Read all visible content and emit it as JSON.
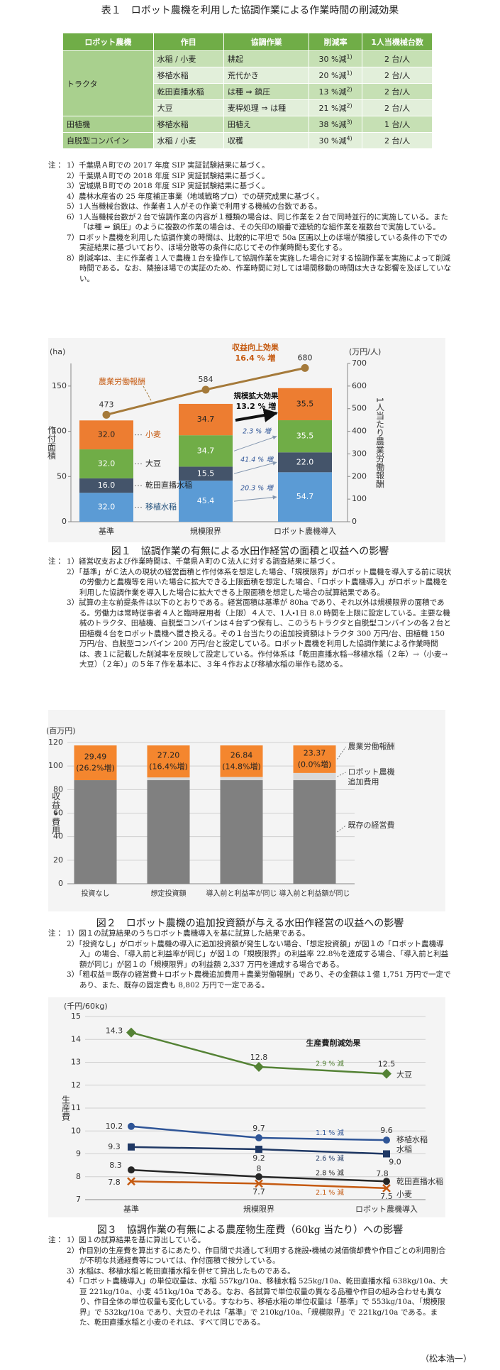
{
  "table": {
    "title": "表１　ロボット農機を利用した協調作業による作業時間の削減効果",
    "header": [
      "ロボット農機",
      "作目",
      "協調作業",
      "削減率",
      "1人当機械台数"
    ],
    "groups": [
      {
        "machine": "トラクタ",
        "rows": [
          [
            "水稲 / 小麦",
            "耕起",
            "30 %減",
            "1)",
            "2 台/人"
          ],
          [
            "移植水稲",
            "荒代かき",
            "20 %減",
            "1)",
            "2 台/人"
          ],
          [
            "乾田直播水稲",
            "は種 ⇒ 鎮圧",
            "13 %減",
            "2)",
            "2 台/人"
          ],
          [
            "大豆",
            "麦稈処理 ⇒ は種",
            "21 %減",
            "2)",
            "2 台/人"
          ]
        ]
      },
      {
        "machine": "田植機",
        "rows": [
          [
            "移植水稲",
            "田植え",
            "38 %減",
            "3)",
            "1 台/人"
          ]
        ]
      },
      {
        "machine": "自脱型コンバイン",
        "rows": [
          [
            "水稲 / 小麦",
            "収穫",
            "30 %減",
            "4)",
            "2 台/人"
          ]
        ]
      }
    ],
    "notes": {
      "label": "注：",
      "items": [
        "1）千葉県Ａ町での 2017 年度 SIP 実証試験結果に基づく。",
        "2）千葉県Ａ町での 2018 年度 SIP 実証試験結果に基づく。",
        "3）宮城県Ｂ町での 2018 年度 SIP 実証試験結果に基づく。",
        "4）農林水産省の 25 年度補正事業（地域戦略プロ）での研究成果に基づく。",
        "5）1人当機械台数は、作業者１人がその作業で利用する機械の台数である。",
        "6）1人当機械台数が２台で協調作業の内容が１種類の場合は、同じ作業を２台で同時並行的に実施している。また「は種 ⇒ 鎮圧」のように複数の作業の場合は、その矢印の順番で連続的な組作業を複数台で実施している。",
        "7）ロボット農機を利用した協調作業の時間は、比較的に平坦で 50a 区画以上のほ場が隣接している条件の下での実証結果に基づいており、ほ場分散等の条件に応じてその作業時間も変化する。",
        "8）削減率は、主に作業者１人で農機１台を操作して協調作業を実施した場合に対する協調作業を実施によって削減時間である。なお、隣接ほ場での実証のため、作業時間に対しては場間移動の時間は大きな影響を及ぼしていない。"
      ]
    }
  },
  "chart_data": [
    {
      "type": "stacked_bar",
      "categories": [
        "基準",
        "規模限界",
        "ロボット農機導入"
      ],
      "series": [
        {
          "name": "移植水稲",
          "color": "#5b9bd5",
          "values": [
            32.0,
            45.4,
            54.7
          ],
          "value_labels": [
            "32.0",
            "45.4",
            "54.7"
          ],
          "data_labels": true
        },
        {
          "name": "乾田直播水稲",
          "color": "#44546a",
          "values": [
            16.0,
            15.5,
            22.0
          ],
          "value_labels": [
            "16.0",
            "15.5",
            "22.0"
          ],
          "data_labels": true
        },
        {
          "name": "大豆",
          "color": "#70ad47",
          "values": [
            32.0,
            34.7,
            35.5
          ],
          "value_labels": [
            "32.0",
            "34.7",
            "35.5"
          ],
          "data_labels": true
        },
        {
          "name": "小麦",
          "color": "#ed7d31",
          "values": [
            32.0,
            34.7,
            35.5
          ],
          "value_labels": [
            "32.0",
            "34.7",
            "35.5"
          ],
          "data_labels": true
        },
        {
          "name": "農業労働報酬",
          "type": "line",
          "axis": "y2",
          "color": "#a57a3a",
          "values": [
            473,
            584,
            680
          ],
          "data_labels": true
        }
      ],
      "ylim": [
        0,
        175
      ],
      "yticks": [
        0,
        50,
        100,
        150
      ],
      "y2lim": [
        0,
        700
      ],
      "y2ticks": [
        0,
        100,
        200,
        300,
        400,
        500,
        600,
        700
      ],
      "grid": false,
      "yunit": "(ha)",
      "ylabel": "作付面積",
      "y2unit": "(万円/人)",
      "y2label": "1人当たり農業労働報酬",
      "annotations": [
        "収益向上効果",
        "16.4 % 増",
        "規模拡大効果",
        "13.2 % 増",
        "2.3 % 増",
        "41.4 % 増",
        "20.3 % 増"
      ]
    },
    {
      "type": "stacked_bar",
      "categories": [
        "投資なし",
        "想定投資額",
        "導入前と利益率が同じ",
        "導入前と利益額が同じ"
      ],
      "series": [
        {
          "name": "既存の経営費",
          "color": "#808080",
          "values": [
            88.02,
            88.02,
            88.02,
            88.02
          ]
        },
        {
          "name": "ロボット農機追加費用",
          "color": "#d9d9d9",
          "values": [
            null,
            2.29,
            2.65,
            6.12
          ],
          "data_labels": true
        },
        {
          "name": "農業労働報酬",
          "color": "#f4862e",
          "values": [
            29.49,
            27.2,
            26.84,
            23.37
          ],
          "value_labels": [
            "29.49",
            "27.20",
            "26.84",
            "23.37"
          ],
          "data_labels": true,
          "change_labels": [
            "(26.2%増)",
            "(16.4%増)",
            "(14.8%増)",
            "(0.0%増)"
          ]
        }
      ],
      "ylim": [
        0,
        120
      ],
      "yticks": [
        0,
        20,
        40,
        60,
        80,
        100,
        120
      ],
      "grid": true,
      "yunit": "(百万円)",
      "ylabel": "収益・費用"
    },
    {
      "type": "line",
      "categories": [
        "基準",
        "規模限界",
        "ロボット農機導入"
      ],
      "series": [
        {
          "name": "大豆",
          "color": "#548235",
          "marker": "diamond",
          "values": [
            14.3,
            12.8,
            12.5
          ],
          "data_labels": true,
          "change_label": "2.9 % 減"
        },
        {
          "name": "移植水稲",
          "color": "#2f5597",
          "marker": "circle",
          "values": [
            10.2,
            9.7,
            9.6
          ],
          "data_labels": true,
          "change_label": "1.1 % 減"
        },
        {
          "name": "水稲",
          "color": "#1f3864",
          "marker": "square",
          "values": [
            9.3,
            9.2,
            9.0
          ],
          "value_labels": [
            "9.3",
            "9.2",
            "9.0"
          ],
          "data_labels": true,
          "change_label": "2.6 % 減"
        },
        {
          "name": "乾田直播水稲",
          "color": "#262626",
          "marker": "circle",
          "values": [
            8.3,
            8.0,
            7.8
          ],
          "data_labels": true,
          "change_label": "2.8 % 減"
        },
        {
          "name": "小麦",
          "color": "#c55a11",
          "marker": "x",
          "values": [
            7.8,
            7.7,
            7.5
          ],
          "data_labels": true,
          "change_label": "2.1 % 減"
        }
      ],
      "ylim": [
        7,
        15
      ],
      "yticks": [
        7,
        8,
        9,
        10,
        11,
        12,
        13,
        14,
        15
      ],
      "grid": true,
      "yunit": "(千円/60kg)",
      "ylabel": "生産費",
      "annotations": [
        "生産費削減効果"
      ]
    }
  ],
  "figures": [
    {
      "caption": "図１　協調作業の有無による水田作経営の面積と収益への影響",
      "notes": {
        "label": "注：",
        "items": [
          "1）経営収支および作業時間は、千葉県Ａ町のＣ法人に対する調査結果に基づく。",
          "2）「基準」がＣ法人の現状の経営面積と作付体系を想定した場合、「規模限界」がロボット農機を導入する前に現状の労働力と農機等を用いた場合に拡大できる上限面積を想定した場合、「ロボット農機導入」がロボット農機を利用した協調作業を導入した場合に拡大できる上限面積を想定した場合の試算結果である。",
          "3）試算の主な前提条件は以下のとおりである。経営面積は基準が 80ha であり、それ以外は規模限界の面積である。労働力は常時従事者４人と臨時雇用者（上限）４人で、1人・1日 8.0 時間を上限に設定している。主要な機械のトラクタ、田植機、自脱型コンバインは４台ずつ保有し、このうちトラクタと自脱型コンバインの各２台と田植機４台をロボット農機へ置き換える。その１台当たりの追加投資額はトラクタ 300 万円/台、田植機 150 万円/台、自脱型コンバイン 200 万円/台と設定している。ロボット農機を利用した協調作業による作業時間は、表１に記載した削減率を反映して設定している。作付体系は「乾田直播水稲→移植水稲（２年）→（小麦→大豆）（２年）」の５年７作を基本に、３年４作および移植水稲の単作も認める。"
        ]
      }
    },
    {
      "caption": "図２　ロボット農機の追加投資額が与える水田作経営の収益への影響",
      "notes": {
        "label": "注：",
        "items": [
          "1）図１の試算結果のうちロボット農機導入を基に試算した結果である。",
          "2）「投資なし」がロボット農機の導入に追加投資額が発生しない場合、「想定投資額」が図１の「ロボット農機導入」の場合、「導入前と利益率が同じ」が図１の「規模限界」の利益率 22.8％を達成する場合、「導入前と利益額が同じ」が図１の「規模限界」の利益額 2,337 万円を達成する場合である。",
          "3）「粗収益＝既存の経営費＋ロボット農機追加費用＋農業労働報酬」であり、その金額は１億 1,751 万円で一定であり、また、既存の固定費も 8,802 万円で一定である。"
        ]
      }
    },
    {
      "caption": "図３　協調作業の有無による農産物生産費（60kg 当たり）への影響",
      "notes": {
        "label": "注：",
        "items": [
          "1）図１の試算結果を基に算出している。",
          "2）作目別の生産費を算出するにあたり、作目間で共通して利用する施設・機械の減価償却費や作目ごとの利用割合が不明な共通経費等については、作付面積で按分している。",
          "3）水稲は、移植水稲と乾田直播水稲を併せて算出したものである。",
          "4）「ロボット農機導入」の単位収量は、水稲 557kg/10a、移植水稲 525kg/10a、乾田直播水稲 638kg/10a、大豆 221kg/10a、小麦 451kg/10a である。なお、各試算で単位収量の異なる品種や作目の組み合わせも異なり、作目全体の単位収量も変化している。すなわち、移植水稲の単位収量は「基準」で 553kg/10a、「規模限界」で 532kg/10a であり、大豆のそれは「基準」で 210kg/10a、「規模限界」で 221kg/10a である。また、乾田直播水稲と小麦のそれは、すべて同じである。"
        ]
      }
    }
  ],
  "author": "（松本浩一）"
}
